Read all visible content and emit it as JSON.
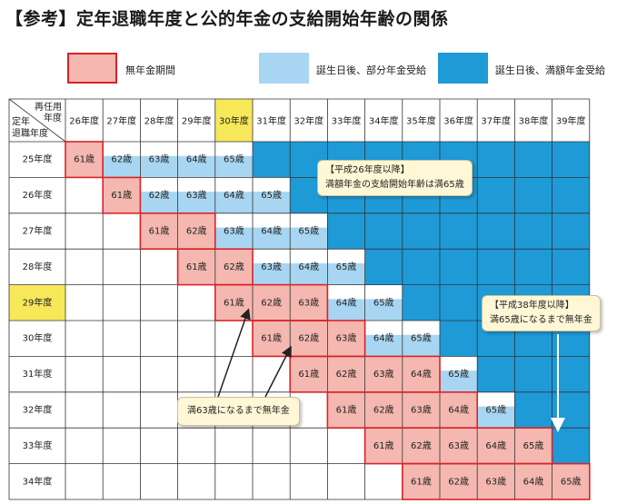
{
  "title": "【参考】定年退職年度と公的年金の支給開始年齢の関係",
  "legend": [
    {
      "label": "無年金期間",
      "color": "#f4b8b0",
      "border": "#d9222a"
    },
    {
      "label": "誕生日後、部分年金受給",
      "color": "#a8d6f2",
      "border": "none"
    },
    {
      "label": "誕生日後、満額年金受給",
      "color": "#1e9ad6",
      "border": "none"
    }
  ],
  "header": {
    "corner_top": "再任用",
    "corner_top2": "年度",
    "corner_bottom": "定年",
    "corner_bottom2": "退職年度",
    "columns": [
      "26年度",
      "27年度",
      "28年度",
      "29年度",
      "30年度",
      "31年度",
      "32年度",
      "33年度",
      "34年度",
      "35年度",
      "36年度",
      "37年度",
      "38年度",
      "39年度"
    ],
    "highlight_column": 4
  },
  "rows": [
    {
      "label": "25年度",
      "start": 0
    },
    {
      "label": "26年度",
      "start": 1
    },
    {
      "label": "27年度",
      "start": 2
    },
    {
      "label": "28年度",
      "start": 3
    },
    {
      "label": "29年度",
      "start": 4
    },
    {
      "label": "30年度",
      "start": 5
    },
    {
      "label": "31年度",
      "start": 6
    },
    {
      "label": "32年度",
      "start": 7
    },
    {
      "label": "33年度",
      "start": 8
    },
    {
      "label": "34年度",
      "start": 9
    }
  ],
  "highlight_row": 4,
  "ages": [
    "61歳",
    "62歳",
    "63歳",
    "64歳",
    "65歳"
  ],
  "unpaid_years": [
    1,
    1,
    2,
    2,
    3,
    3,
    4,
    4,
    5,
    5
  ],
  "colors": {
    "pink": "#f4b8b0",
    "red": "#d9222a",
    "light_blue": "#a8d6f2",
    "blue": "#1e9ad6",
    "yellow": "#f7e85a",
    "grid": "#333333"
  },
  "callouts": {
    "c1_line1": "【平成26年度以降】",
    "c1_line2": "満額年金の支給開始年齢は満65歳",
    "c2_line1": "【平成38年度以降】",
    "c2_line2": "満65歳になるまで無年金",
    "c3_line1": "満63歳になるまで無年金"
  }
}
